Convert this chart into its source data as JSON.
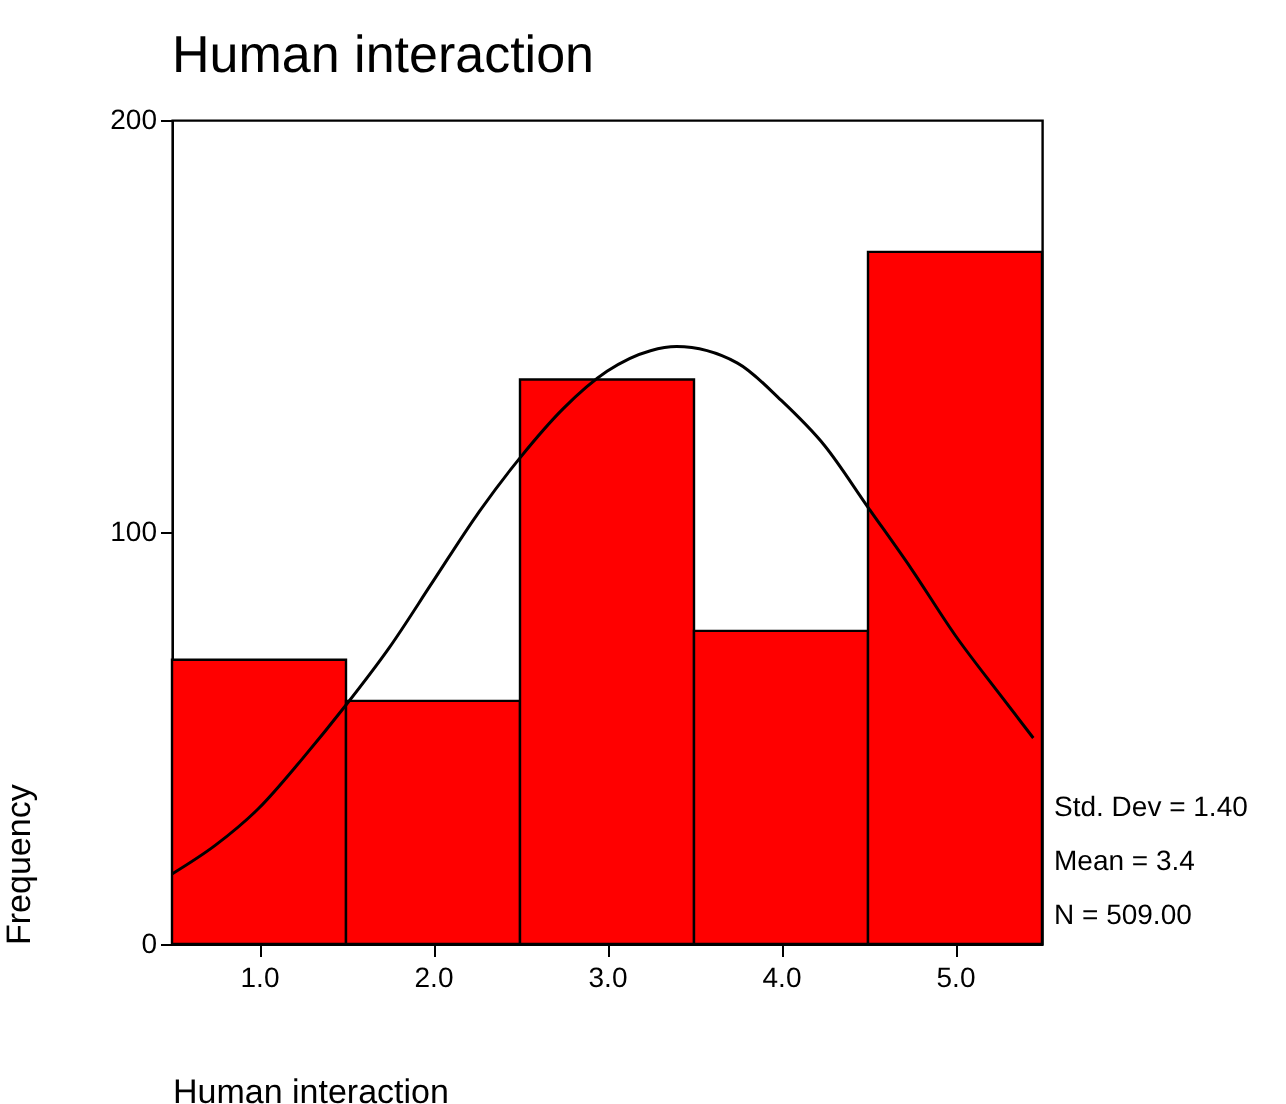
{
  "chart_data": {
    "type": "histogram",
    "title": "Human interaction",
    "xlabel": "Human interaction",
    "ylabel": "Frequency",
    "bins": [
      0.5,
      1.5,
      2.5,
      3.5,
      4.5,
      5.5
    ],
    "values": [
      69,
      59,
      137,
      76,
      168
    ],
    "color": "#ff0000",
    "series": [
      {
        "type": "line",
        "color": "#000000",
        "x": [
          0.5,
          0.75,
          1.0,
          1.25,
          1.5,
          1.75,
          2.0,
          2.25,
          2.5,
          2.75,
          3.0,
          3.25,
          3.4,
          3.75,
          4.0,
          4.25,
          4.5,
          4.75,
          5.0,
          5.25,
          5.45
        ],
        "values": [
          17,
          24,
          33,
          45,
          58,
          72,
          88,
          104,
          118,
          130,
          139,
          144,
          145,
          141,
          132,
          121,
          106,
          91,
          75,
          61,
          50
        ]
      }
    ],
    "xlim": [
      0.5,
      5.5
    ],
    "xticks": [
      {
        "value": 1,
        "label": "1.0"
      },
      {
        "value": 2,
        "label": "2.0"
      },
      {
        "value": 3,
        "label": "3.0"
      },
      {
        "value": 4,
        "label": "4.0"
      },
      {
        "value": 5,
        "label": "5.0"
      }
    ],
    "ylim": [
      0,
      200
    ],
    "yticks": [
      0,
      100,
      200
    ],
    "annotations": [
      "Std. Dev = 1.40",
      "Mean = 3.4",
      "N = 509.00"
    ]
  }
}
